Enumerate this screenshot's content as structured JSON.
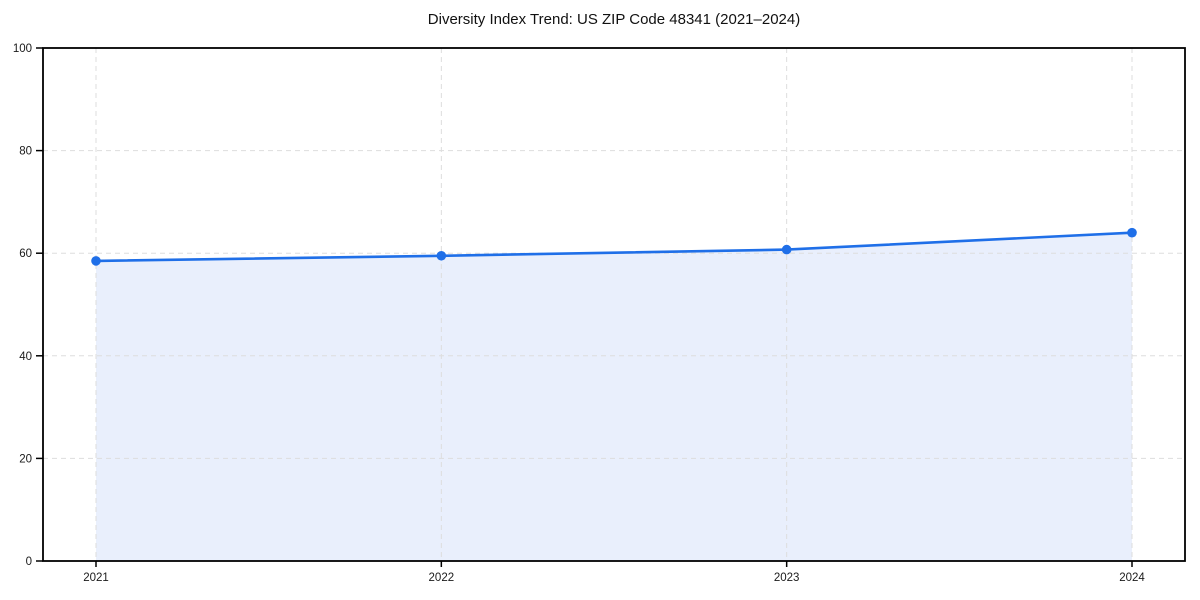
{
  "title": "Diversity Index Trend: US ZIP Code 48341 (2021–2024)",
  "chart_data": {
    "type": "line",
    "title": "Diversity Index Trend: US ZIP Code 48341 (2021–2024)",
    "categories": [
      "2021",
      "2022",
      "2023",
      "2024"
    ],
    "series": [
      {
        "name": "Diversity Index",
        "values": [
          58.5,
          59.5,
          60.7,
          64.0
        ],
        "marker": "circle",
        "area_fill": true
      }
    ],
    "xlabel": "",
    "ylabel": "",
    "ylim": [
      0,
      100
    ],
    "yticks": [
      0,
      20,
      40,
      60,
      80,
      100
    ],
    "grid": {
      "visible": true,
      "style": "dashed",
      "horizontal": true,
      "vertical": true
    },
    "legend": "none",
    "colors": {
      "line": "#1f6fe8",
      "fill": "#e9effc",
      "axis": "#000000",
      "grid": "#dddddd",
      "text": "#1a1a1a",
      "background": "#ffffff"
    }
  }
}
